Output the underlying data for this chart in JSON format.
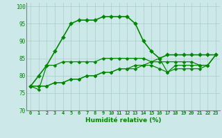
{
  "xlabel": "Humidité relative (%)",
  "background_color": "#cce8e8",
  "grid_color": "#aacccc",
  "line_color": "#008800",
  "xlim": [
    -0.5,
    23.5
  ],
  "ylim": [
    70,
    101
  ],
  "yticks": [
    70,
    75,
    80,
    85,
    90,
    95,
    100
  ],
  "xticks": [
    0,
    1,
    2,
    3,
    4,
    5,
    6,
    7,
    8,
    9,
    10,
    11,
    12,
    13,
    14,
    15,
    16,
    17,
    18,
    19,
    20,
    21,
    22,
    23
  ],
  "series": [
    [
      77,
      80,
      83,
      87,
      91,
      95,
      96,
      96,
      96,
      97,
      97,
      97,
      97,
      95,
      90,
      87,
      85,
      86,
      86,
      86,
      86,
      86,
      86,
      86
    ],
    [
      77,
      76,
      83,
      83,
      84,
      84,
      84,
      84,
      84,
      85,
      85,
      85,
      85,
      85,
      85,
      84,
      85,
      81,
      83,
      83,
      83,
      83,
      83,
      86
    ],
    [
      77,
      77,
      77,
      78,
      78,
      79,
      79,
      80,
      80,
      81,
      81,
      82,
      82,
      82,
      83,
      83,
      82,
      81,
      82,
      82,
      82,
      82,
      83,
      86
    ],
    [
      77,
      77,
      77,
      78,
      78,
      79,
      79,
      80,
      80,
      81,
      81,
      82,
      82,
      83,
      83,
      84,
      84,
      84,
      84,
      84,
      84,
      83,
      83,
      86
    ]
  ]
}
